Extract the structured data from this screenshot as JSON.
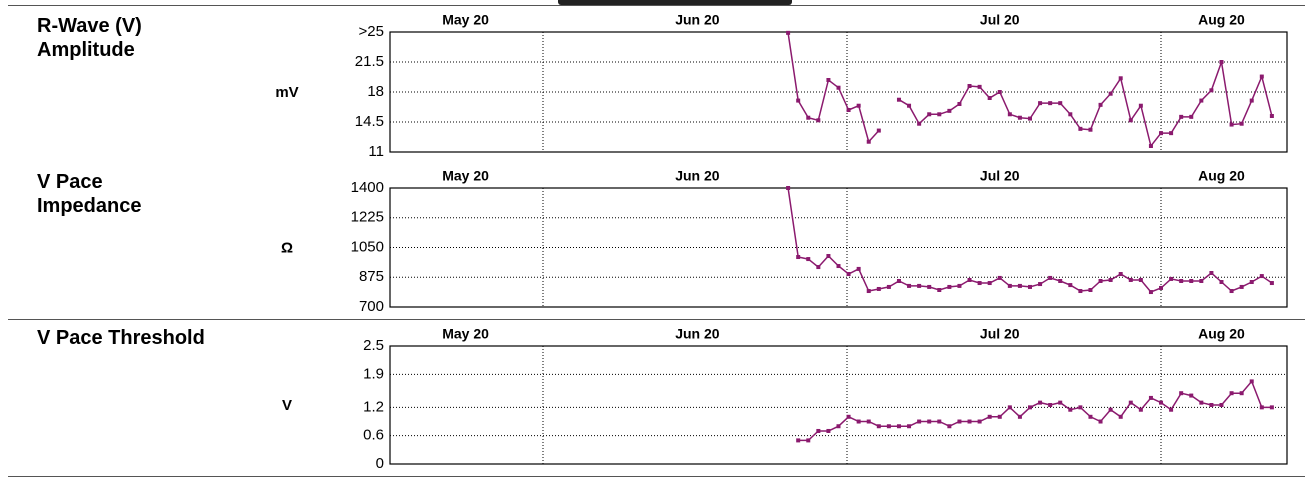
{
  "chart_data": [
    {
      "type": "line",
      "title": "R-Wave (V) Amplitude",
      "y_label": "mV",
      "categories": [
        null,
        null,
        null,
        null,
        null,
        null,
        null,
        "May 20",
        null,
        null,
        null,
        null,
        null,
        null,
        null,
        null,
        null,
        null,
        null,
        null,
        null,
        null,
        null,
        null,
        null,
        null,
        null,
        null,
        null,
        null,
        "Jun 20",
        null,
        null,
        null,
        null,
        null,
        null,
        null,
        null,
        null,
        null,
        null,
        null,
        null,
        null,
        null,
        null,
        null,
        null,
        null,
        null,
        null,
        null,
        null,
        null,
        null,
        null,
        null,
        null,
        null,
        "Jul 20",
        null,
        null,
        null,
        null,
        null,
        null,
        null,
        null,
        null,
        null,
        null,
        null,
        null,
        null,
        null,
        null,
        null,
        null,
        null,
        null,
        null,
        "Aug 20",
        null,
        null,
        null,
        null,
        null,
        null
      ],
      "values": [
        null,
        null,
        null,
        null,
        null,
        null,
        null,
        null,
        null,
        null,
        null,
        null,
        null,
        null,
        null,
        null,
        null,
        null,
        null,
        null,
        null,
        null,
        null,
        null,
        null,
        null,
        null,
        null,
        null,
        null,
        null,
        null,
        null,
        null,
        null,
        null,
        null,
        null,
        null,
        24.9,
        17.0,
        15.0,
        14.7,
        19.4,
        18.5,
        15.9,
        16.4,
        12.2,
        13.5,
        null,
        17.1,
        16.4,
        14.3,
        15.4,
        15.4,
        15.8,
        16.6,
        18.7,
        18.6,
        17.3,
        18.0,
        15.4,
        15.0,
        14.9,
        16.7,
        16.7,
        16.7,
        15.4,
        13.7,
        13.6,
        16.5,
        17.8,
        19.6,
        14.7,
        16.4,
        11.7,
        13.2,
        13.2,
        15.1,
        15.1,
        17.0,
        18.2,
        21.5,
        14.2,
        14.3,
        17.0,
        19.8,
        15.2,
        null
      ],
      "color": "#8b1a6e",
      "ylim": [
        11,
        25
      ],
      "yticks": [
        11,
        14.5,
        18,
        21.5,
        {
          "value": 25,
          "label": ">25"
        }
      ],
      "grid": true
    },
    {
      "type": "line",
      "title": "V Pace Impedance",
      "y_label": "Ω",
      "categories": [
        null,
        null,
        null,
        null,
        null,
        null,
        null,
        "May 20",
        null,
        null,
        null,
        null,
        null,
        null,
        null,
        null,
        null,
        null,
        null,
        null,
        null,
        null,
        null,
        null,
        null,
        null,
        null,
        null,
        null,
        null,
        "Jun 20",
        null,
        null,
        null,
        null,
        null,
        null,
        null,
        null,
        null,
        null,
        null,
        null,
        null,
        null,
        null,
        null,
        null,
        null,
        null,
        null,
        null,
        null,
        null,
        null,
        null,
        null,
        null,
        null,
        null,
        "Jul 20",
        null,
        null,
        null,
        null,
        null,
        null,
        null,
        null,
        null,
        null,
        null,
        null,
        null,
        null,
        null,
        null,
        null,
        null,
        null,
        null,
        null,
        "Aug 20",
        null,
        null,
        null,
        null,
        null,
        null
      ],
      "values": [
        null,
        null,
        null,
        null,
        null,
        null,
        null,
        null,
        null,
        null,
        null,
        null,
        null,
        null,
        null,
        null,
        null,
        null,
        null,
        null,
        null,
        null,
        null,
        null,
        null,
        null,
        null,
        null,
        null,
        null,
        null,
        null,
        null,
        null,
        null,
        null,
        null,
        null,
        null,
        1400,
        994,
        982,
        935,
        1000,
        941,
        894,
        924,
        794,
        806,
        818,
        853,
        824,
        824,
        818,
        800,
        818,
        824,
        859,
        841,
        841,
        871,
        824,
        824,
        818,
        835,
        871,
        853,
        829,
        794,
        800,
        853,
        859,
        894,
        859,
        859,
        788,
        812,
        865,
        853,
        853,
        853,
        900,
        847,
        794,
        818,
        847,
        882,
        841,
        null
      ],
      "color": "#8b1a6e",
      "ylim": [
        700,
        1400
      ],
      "yticks": [
        700,
        875,
        1050,
        1225,
        1400
      ],
      "grid": true
    },
    {
      "type": "line",
      "title": "V Pace Threshold",
      "y_label": "V",
      "categories": [
        null,
        null,
        null,
        null,
        null,
        null,
        null,
        "May 20",
        null,
        null,
        null,
        null,
        null,
        null,
        null,
        null,
        null,
        null,
        null,
        null,
        null,
        null,
        null,
        null,
        null,
        null,
        null,
        null,
        null,
        null,
        "Jun 20",
        null,
        null,
        null,
        null,
        null,
        null,
        null,
        null,
        null,
        null,
        null,
        null,
        null,
        null,
        null,
        null,
        null,
        null,
        null,
        null,
        null,
        null,
        null,
        null,
        null,
        null,
        null,
        null,
        null,
        "Jul 20",
        null,
        null,
        null,
        null,
        null,
        null,
        null,
        null,
        null,
        null,
        null,
        null,
        null,
        null,
        null,
        null,
        null,
        null,
        null,
        null,
        null,
        "Aug 20",
        null,
        null,
        null,
        null,
        null,
        null
      ],
      "values": [
        null,
        null,
        null,
        null,
        null,
        null,
        null,
        null,
        null,
        null,
        null,
        null,
        null,
        null,
        null,
        null,
        null,
        null,
        null,
        null,
        null,
        null,
        null,
        null,
        null,
        null,
        null,
        null,
        null,
        null,
        null,
        null,
        null,
        null,
        null,
        null,
        null,
        null,
        null,
        null,
        0.5,
        0.5,
        0.7,
        0.7,
        0.8,
        1.0,
        0.9,
        0.9,
        0.8,
        0.8,
        0.8,
        0.8,
        0.9,
        0.9,
        0.9,
        0.8,
        0.9,
        0.9,
        0.9,
        1.0,
        1.0,
        1.2,
        1.0,
        1.2,
        1.3,
        1.25,
        1.3,
        1.15,
        1.2,
        1.0,
        0.9,
        1.15,
        1.0,
        1.3,
        1.15,
        1.4,
        1.3,
        1.15,
        1.5,
        1.45,
        1.3,
        1.25,
        1.25,
        1.5,
        1.5,
        1.75,
        1.2,
        1.2,
        null
      ],
      "color": "#8b1a6e",
      "ylim": [
        0,
        2.5
      ],
      "yticks": [
        0,
        0.6,
        1.2,
        1.9,
        2.5
      ],
      "grid": true
    }
  ]
}
